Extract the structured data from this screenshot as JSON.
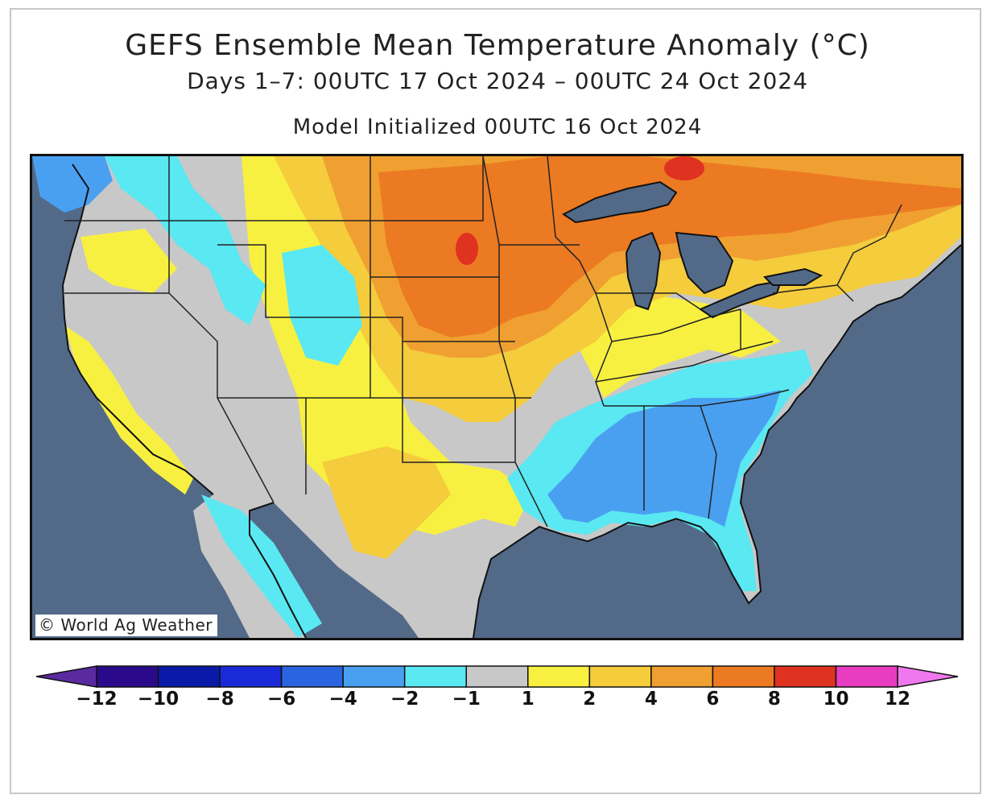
{
  "title": "GEFS Ensemble Mean Temperature Anomaly (°C)",
  "subtitle": "Days 1–7: 00UTC 17 Oct 2024 – 00UTC 24 Oct 2024",
  "init_text": "Model Initialized 00UTC 16 Oct 2024",
  "credit": "© World Ag Weather",
  "colors": {
    "water": "#526a88",
    "neutral": "#c8c8c8",
    "bins": [
      "#5a2aa0",
      "#2a0a8a",
      "#0a1aa8",
      "#1a2ad8",
      "#2a64e0",
      "#4aa0f0",
      "#5ae8f2",
      "#c8c8c8",
      "#f8f040",
      "#f4cc3c",
      "#f0a030",
      "#ec7a22",
      "#e03220",
      "#e83cc0",
      "#f078ee"
    ]
  },
  "legend": {
    "ticks": [
      "−12",
      "−10",
      "−8",
      "−6",
      "−4",
      "−2",
      "−1",
      "1",
      "2",
      "4",
      "6",
      "8",
      "10",
      "12"
    ]
  },
  "regions": [
    {
      "name": "north-central",
      "label": "6 to 8"
    },
    {
      "name": "great-lakes",
      "label": "4 to 6"
    },
    {
      "name": "southeast",
      "label": "-4 to -2"
    },
    {
      "name": "west",
      "label": "-1 to 1"
    }
  ]
}
